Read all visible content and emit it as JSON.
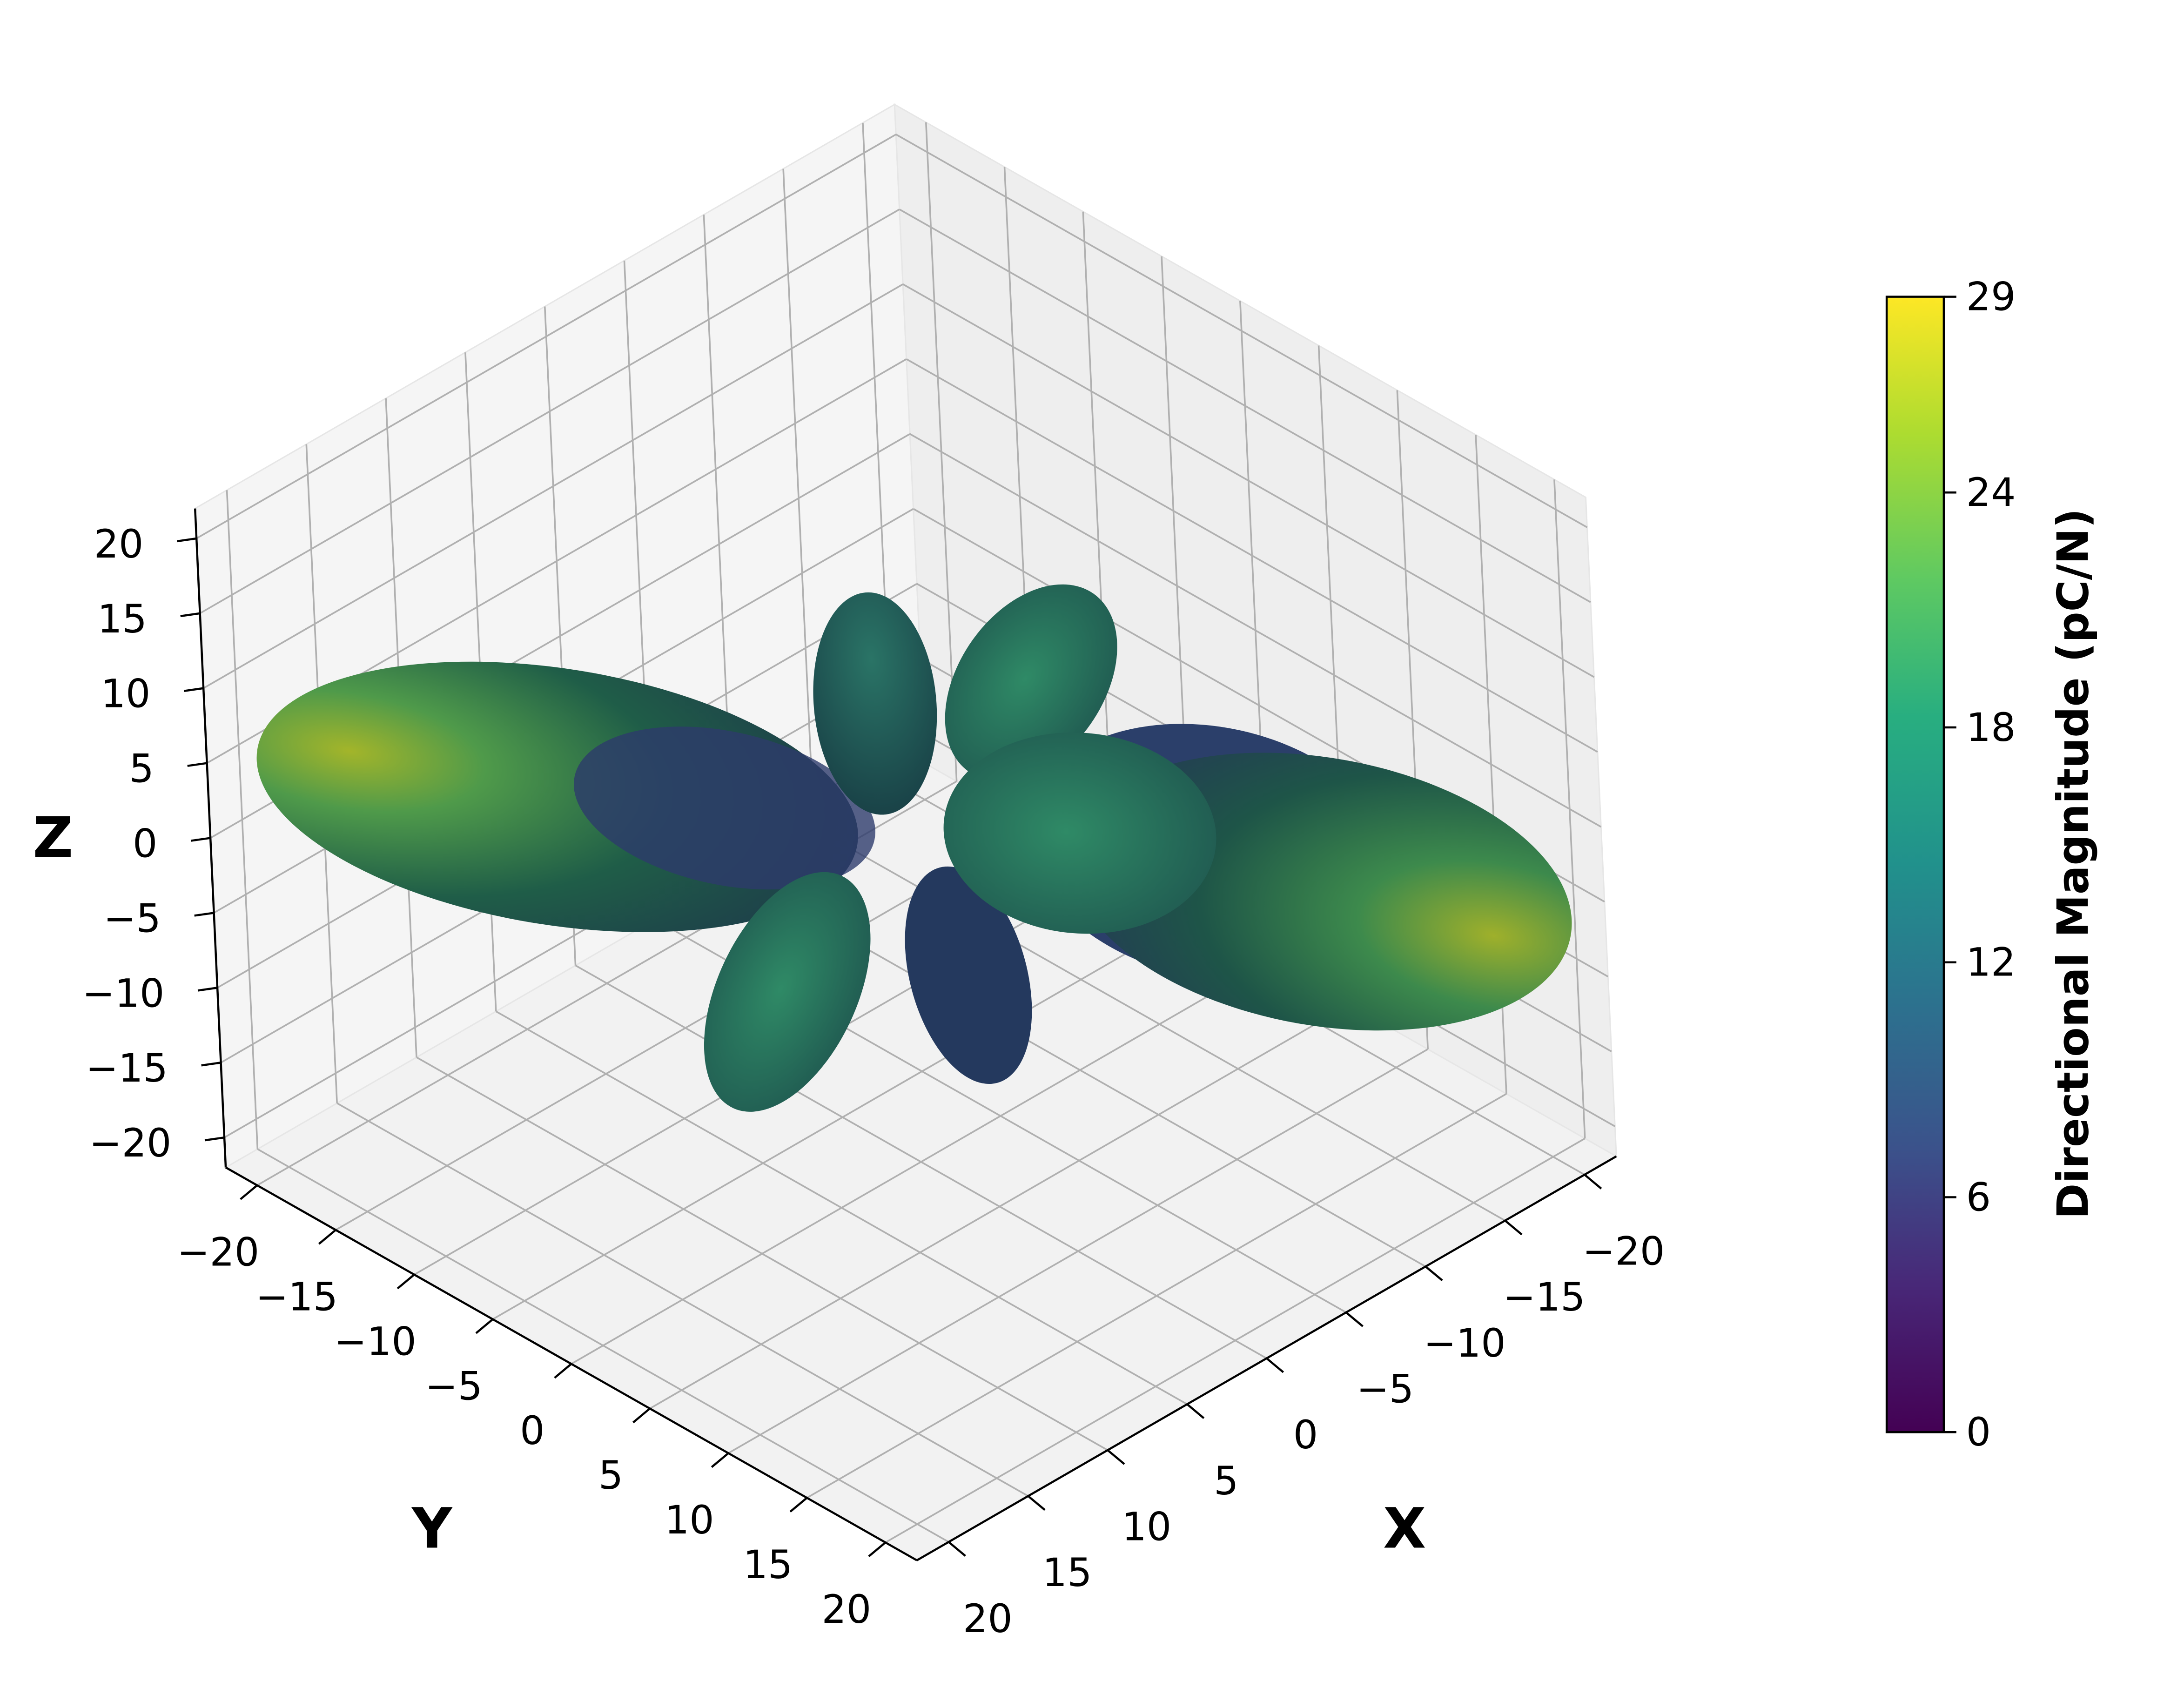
{
  "chart_data": {
    "type": "surface3d",
    "xlabel": "X",
    "ylabel": "Y",
    "zlabel": "Z",
    "xlim": [
      -22,
      22
    ],
    "ylim": [
      -22,
      22
    ],
    "zlim": [
      -22,
      22
    ],
    "xticks": [
      {
        "value": -20,
        "label": "−20"
      },
      {
        "value": -15,
        "label": "−15"
      },
      {
        "value": -10,
        "label": "−10"
      },
      {
        "value": -5,
        "label": "−5"
      },
      0,
      5,
      10,
      15,
      20
    ],
    "yticks": [
      {
        "value": -20,
        "label": "−20"
      },
      {
        "value": -15,
        "label": "−15"
      },
      {
        "value": -10,
        "label": "−10"
      },
      {
        "value": -5,
        "label": "−5"
      },
      0,
      5,
      10,
      15,
      20
    ],
    "zticks": [
      {
        "value": -20,
        "label": "−20"
      },
      {
        "value": -15,
        "label": "−15"
      },
      {
        "value": -10,
        "label": "−10"
      },
      {
        "value": -5,
        "label": "−5"
      },
      0,
      5,
      10,
      15,
      20
    ],
    "grid": true,
    "colorbar": {
      "label": "Directional Magnitude (pC/N)",
      "lim": [
        0,
        29
      ],
      "ticks": [
        0,
        6,
        12,
        18,
        24,
        29
      ],
      "colormap": "viridis"
    }
  }
}
